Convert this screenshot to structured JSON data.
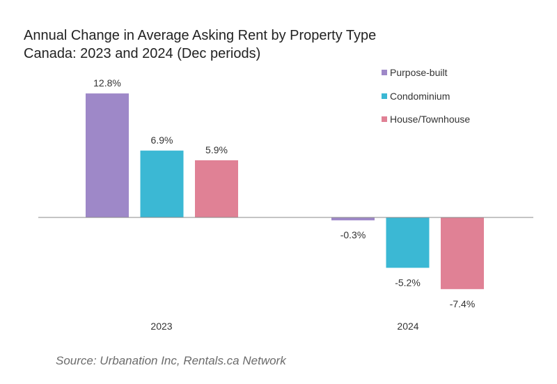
{
  "chart_data": {
    "type": "bar",
    "title": "Annual Change in Average Asking Rent by Property Type",
    "subtitle": "Canada: 2023 and 2024 (Dec periods)",
    "categories": [
      "2023",
      "2024"
    ],
    "series": [
      {
        "name": "Purpose-built",
        "color": "#9e88c8",
        "values": [
          12.8,
          -0.3
        ],
        "labels": [
          "12.8%",
          "-0.3%"
        ]
      },
      {
        "name": "Condominium",
        "color": "#3bb8d4",
        "values": [
          6.9,
          -5.2
        ],
        "labels": [
          "6.9%",
          "-5.2%"
        ]
      },
      {
        "name": "House/Townhouse",
        "color": "#e08195",
        "values": [
          5.9,
          -7.4
        ],
        "labels": [
          "5.9%",
          "-7.4%"
        ]
      }
    ],
    "ylim": [
      -9,
      15
    ],
    "grid": false,
    "legend_position": "top-right",
    "source": "Source: Urbanation Inc, Rentals.ca Network"
  }
}
